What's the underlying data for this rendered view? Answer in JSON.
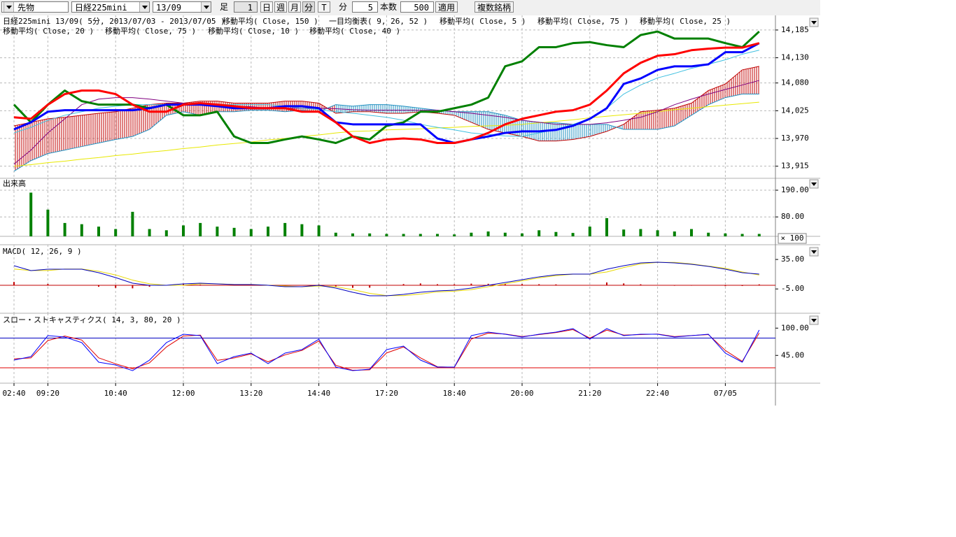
{
  "toolbar": {
    "market": "先物",
    "symbol": "日経225mini",
    "contract": "13/09",
    "bar_label": "足",
    "bar_count": "1",
    "buttons": [
      "日",
      "週",
      "月",
      "分",
      "T"
    ],
    "unit": "分",
    "interval": "5",
    "count_label": "本数",
    "count": "500",
    "apply": "適用",
    "multi": "複数銘柄"
  },
  "chart_data": [
    {
      "type": "line",
      "title": "日経225mini 13/09( 5分, 2013/07/03 - 2013/07/05 )",
      "legend": [
        "移動平均( Close, 150 )",
        "一目均衡表( 9, 26, 52 )",
        "移動平均( Close, 5 )",
        "移動平均( Close, 75 )",
        "移動平均( Close, 25 )",
        "移動平均( Close, 20 )",
        "移動平均( Close, 75 )",
        "移動平均( Close, 10 )",
        "移動平均( Close, 40 )"
      ],
      "ylim": [
        13891,
        14214
      ],
      "yticks": [
        {
          "value": 13915,
          "label": "13,915"
        },
        {
          "value": 13970,
          "label": "13,970"
        },
        {
          "value": 14025,
          "label": "14,025"
        },
        {
          "value": 14080,
          "label": "14,080"
        },
        {
          "value": 14130,
          "label": "14,130"
        },
        {
          "value": 14185,
          "label": "14,185"
        }
      ],
      "grid": true,
      "series": [
        {
          "type": "cloud",
          "color": "#c00000",
          "color2": "#2090c0",
          "spanA": [
            13995,
            14002,
            14009,
            14012,
            14016,
            14020,
            14023,
            14030,
            14037,
            14040,
            14040,
            14044,
            14044,
            14040,
            14040,
            14040,
            14044,
            14044,
            14040,
            14020,
            14023,
            14023,
            14020,
            14020,
            14023,
            14020,
            14016,
            14002,
            13988,
            13981,
            13974,
            13965,
            13965,
            13968,
            13974,
            13984,
            13998,
            14023,
            14026,
            14030,
            14040,
            14065,
            14078,
            14106,
            14113
          ],
          "spanB": [
            13905,
            13926,
            13940,
            13947,
            13954,
            13961,
            13968,
            13974,
            13988,
            14016,
            14023,
            14016,
            14023,
            14023,
            14026,
            14026,
            14023,
            14026,
            14023,
            14037,
            14034,
            14037,
            14037,
            14034,
            14030,
            14026,
            14023,
            14023,
            14023,
            14016,
            14006,
            14002,
            14001,
            13998,
            13998,
            13998,
            13988,
            13988,
            13988,
            13995,
            14016,
            14037,
            14051,
            14058,
            14058
          ]
        },
        {
          "color": "#e8e800",
          "width": 1,
          "values": [
            13915,
            13918,
            13922,
            13925,
            13929,
            13932,
            13936,
            13939,
            13943,
            13946,
            13950,
            13953,
            13957,
            13960,
            13963,
            13967,
            13970,
            13974,
            13977,
            13981,
            13984,
            13985,
            13987,
            13988,
            13989,
            13991,
            13992,
            13994,
            13995,
            13996,
            13998,
            14001,
            14004,
            14007,
            14011,
            14014,
            14017,
            14020,
            14023,
            14027,
            14030,
            14033,
            14036,
            14039,
            14042
          ]
        },
        {
          "color": "#800080",
          "width": 1,
          "values": [
            13919,
            13947,
            13981,
            14009,
            14037,
            14048,
            14051,
            14051,
            14048,
            14044,
            14040,
            14037,
            14037,
            14034,
            14033,
            14030,
            14030,
            14030,
            14030,
            14029,
            14027,
            14026,
            14026,
            14026,
            14026,
            14026,
            14023,
            14020,
            14016,
            14012,
            14006,
            14002,
            13998,
            13998,
            13998,
            14001,
            14006,
            14012,
            14023,
            14037,
            14048,
            14058,
            14067,
            14076,
            14085
          ]
        },
        {
          "color": "#40c0e0",
          "width": 1,
          "values": [
            13981,
            13992,
            14006,
            14016,
            14023,
            14030,
            14034,
            14037,
            14037,
            14037,
            14037,
            14037,
            14037,
            14037,
            14037,
            14037,
            14034,
            14030,
            14027,
            14023,
            14020,
            14016,
            14012,
            14006,
            13998,
            13992,
            13987,
            13981,
            13978,
            13975,
            13974,
            13981,
            13988,
            13998,
            14009,
            14030,
            14058,
            14076,
            14090,
            14099,
            14109,
            14117,
            14126,
            14137,
            14145
          ]
        },
        {
          "color": "#008000",
          "width": 3,
          "values": [
            14037,
            14002,
            14037,
            14065,
            14044,
            14037,
            14037,
            14037,
            14030,
            14037,
            14016,
            14016,
            14023,
            13974,
            13961,
            13961,
            13968,
            13974,
            13968,
            13961,
            13974,
            13968,
            13995,
            14002,
            14023,
            14023,
            14030,
            14037,
            14051,
            14113,
            14123,
            14151,
            14151,
            14159,
            14161,
            14155,
            14151,
            14175,
            14182,
            14168,
            14168,
            14168,
            14159,
            14151,
            14182
          ]
        },
        {
          "color": "#0000ff",
          "width": 3,
          "values": [
            13988,
            14002,
            14023,
            14026,
            14026,
            14026,
            14026,
            14026,
            14030,
            14037,
            14037,
            14037,
            14034,
            14030,
            14030,
            14030,
            14034,
            14034,
            14030,
            14002,
            13998,
            13998,
            13998,
            13998,
            13998,
            13970,
            13961,
            13968,
            13974,
            13981,
            13984,
            13984,
            13987,
            13995,
            14009,
            14030,
            14078,
            14089,
            14106,
            14113,
            14113,
            14117,
            14141,
            14141,
            14159
          ]
        },
        {
          "color": "#ff0000",
          "width": 3,
          "values": [
            14012,
            14009,
            14037,
            14058,
            14065,
            14065,
            14058,
            14037,
            14023,
            14023,
            14037,
            14040,
            14037,
            14034,
            14030,
            14030,
            14030,
            14023,
            14023,
            14002,
            13974,
            13961,
            13968,
            13970,
            13968,
            13961,
            13961,
            13968,
            13981,
            13998,
            14009,
            14016,
            14023,
            14026,
            14037,
            14065,
            14099,
            14120,
            14134,
            14137,
            14145,
            14148,
            14150,
            14150,
            14159
          ]
        }
      ]
    },
    {
      "type": "bar",
      "title": "出来高",
      "unit_label": "× 100",
      "ylim": [
        0,
        239
      ],
      "yticks": [
        {
          "value": 80,
          "label": "80.00"
        },
        {
          "value": 190,
          "label": "190.00"
        }
      ],
      "grid": true,
      "color": "#008000",
      "values": [
        0,
        180,
        110,
        55,
        50,
        40,
        30,
        101,
        30,
        25,
        45,
        55,
        40,
        35,
        30,
        40,
        55,
        50,
        45,
        15,
        12,
        12,
        10,
        10,
        10,
        10,
        8,
        15,
        20,
        15,
        12,
        25,
        18,
        14,
        40,
        75,
        28,
        30,
        25,
        20,
        30,
        15,
        12,
        10,
        10
      ]
    },
    {
      "type": "line",
      "title": "MACD( 12, 26, 9 )",
      "ylim": [
        -38,
        55
      ],
      "yticks": [
        {
          "value": -5,
          "label": "-5.00"
        },
        {
          "value": 35,
          "label": "35.00"
        }
      ],
      "grid": false,
      "histogram": {
        "color": "#c00000",
        "values": [
          4.5,
          -0.1,
          1.8,
          -0.2,
          -0.2,
          -2,
          -3.6,
          -4.2,
          -2,
          0,
          1.9,
          0.8,
          -0.1,
          -0.1,
          -0.1,
          0,
          -0.9,
          0.1,
          1,
          -1.8,
          -3.5,
          -3.3,
          -0.3,
          1.6,
          2.5,
          1.4,
          1.3,
          2.2,
          2,
          1.8,
          1.6,
          1.4,
          1.2,
          0.2,
          0.2,
          3.8,
          2.5,
          1.3,
          0.3,
          -0.7,
          -0.6,
          -0.4,
          -1.2,
          -1,
          1.2
        ]
      },
      "series": [
        {
          "color": "#e8d800",
          "width": 1,
          "values": [
            22,
            20,
            20,
            22,
            22,
            19,
            14,
            7,
            2,
            0,
            0,
            2,
            2,
            1,
            1,
            0,
            -1,
            -2,
            -1,
            -2,
            -6,
            -11,
            -14,
            -14,
            -12,
            -9,
            -8,
            -6,
            -2,
            2,
            6,
            10,
            13,
            15,
            15,
            18,
            24,
            29,
            31,
            31,
            29,
            26,
            23,
            18,
            14
          ]
        },
        {
          "color": "#0000c0",
          "width": 1,
          "values": [
            26.5,
            19.9,
            21.8,
            21.8,
            21.8,
            17,
            10.4,
            2.8,
            0,
            0,
            1.9,
            2.8,
            1.9,
            0.9,
            0.9,
            0,
            -1.9,
            -1.9,
            0,
            -3.8,
            -9.5,
            -14.3,
            -14.3,
            -12.4,
            -9.5,
            -7.6,
            -6.7,
            -3.8,
            0,
            3.8,
            7.6,
            11.4,
            14.2,
            15.2,
            15.2,
            21.8,
            26.5,
            30.3,
            31.3,
            30.3,
            28.4,
            25.6,
            21.8,
            17,
            15.2
          ]
        }
      ]
    },
    {
      "type": "line",
      "title": "スロー・ストキャスティクス( 14, 3, 80, 20 )",
      "ylim": [
        -11,
        130
      ],
      "yticks": [
        {
          "value": 45,
          "label": "45.00"
        },
        {
          "value": 100,
          "label": "100.00"
        }
      ],
      "grid": false,
      "levels": [
        80,
        20
      ],
      "level_colors": [
        "#0000c0",
        "#e00000"
      ],
      "categories": [
        "02:40",
        null,
        "09:20",
        null,
        null,
        null,
        "10:40",
        null,
        null,
        null,
        "12:00",
        null,
        null,
        null,
        "13:20",
        null,
        null,
        null,
        "14:40",
        null,
        null,
        null,
        "17:20",
        null,
        null,
        null,
        "18:40",
        null,
        null,
        null,
        "20:00",
        null,
        null,
        null,
        "21:20",
        null,
        null,
        null,
        "22:40",
        null,
        null,
        null,
        "07/05",
        null,
        null
      ],
      "series": [
        {
          "color": "#e00000",
          "width": 1,
          "values": [
            38,
            40,
            75,
            84,
            76,
            40,
            28,
            18,
            30,
            62,
            84,
            86,
            35,
            40,
            48,
            32,
            46,
            55,
            74,
            25,
            15,
            16,
            50,
            62,
            40,
            22,
            21,
            78,
            90,
            88,
            83,
            87,
            91,
            97,
            80,
            96,
            86,
            87,
            88,
            83,
            85,
            87,
            55,
            33,
            90
          ]
        },
        {
          "color": "#0000ff",
          "width": 1,
          "values": [
            35.5,
            42.6,
            84.9,
            82,
            70.8,
            31.3,
            25.6,
            14.3,
            35.5,
            70.8,
            87.7,
            84.9,
            28.4,
            42.6,
            49.6,
            28.4,
            49.6,
            56.7,
            77.8,
            21.4,
            14.3,
            17.2,
            56.7,
            63.7,
            35.5,
            21.4,
            21.4,
            84.9,
            91.9,
            87.7,
            82,
            87.7,
            91.9,
            99,
            77.8,
            99,
            84.9,
            87.7,
            87.7,
            82,
            84.9,
            87.7,
            49.6,
            31.3,
            96.1
          ]
        }
      ]
    }
  ]
}
